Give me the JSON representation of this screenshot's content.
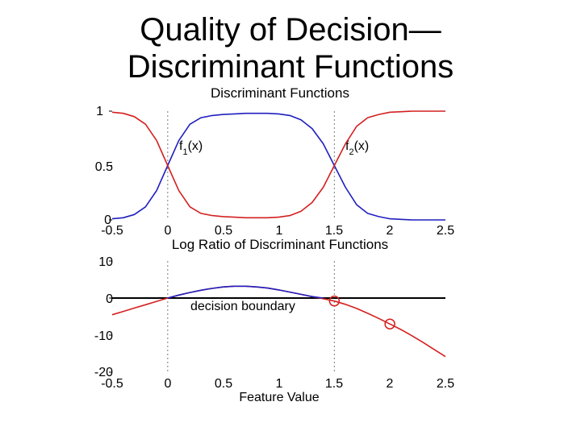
{
  "slide": {
    "title_line1": "Quality of Decision—",
    "title_line2": "Discriminant Functions"
  },
  "chart_data": [
    {
      "type": "line",
      "title": "Discriminant Functions",
      "xlabel": "",
      "ylabel": "",
      "xlim": [
        -0.5,
        2.5
      ],
      "ylim": [
        0,
        1
      ],
      "xticks": [
        "-0.5",
        "0",
        "0.5",
        "1",
        "1.5",
        "2",
        "2.5"
      ],
      "yticks": [
        "0",
        "0.5",
        "1"
      ],
      "vlines": [
        0,
        1.5
      ],
      "grid": false,
      "series": [
        {
          "name": "f1(x)",
          "color": "#1f1fbf",
          "x": [
            -0.5,
            -0.4,
            -0.3,
            -0.2,
            -0.1,
            0.0,
            0.1,
            0.2,
            0.3,
            0.4,
            0.5,
            0.6,
            0.7,
            0.8,
            0.9,
            1.0,
            1.1,
            1.2,
            1.3,
            1.4,
            1.5,
            1.6,
            1.7,
            1.8,
            1.9,
            2.0,
            2.1,
            2.2,
            2.3,
            2.4,
            2.5
          ],
          "y": [
            0.01,
            0.02,
            0.05,
            0.12,
            0.27,
            0.5,
            0.73,
            0.88,
            0.94,
            0.96,
            0.97,
            0.975,
            0.98,
            0.98,
            0.98,
            0.975,
            0.96,
            0.92,
            0.84,
            0.7,
            0.5,
            0.3,
            0.14,
            0.06,
            0.03,
            0.01,
            0.005,
            0.0,
            0.0,
            0.0,
            0.0
          ]
        },
        {
          "name": "f2(x)",
          "color": "#d42020",
          "x": [
            -0.5,
            -0.4,
            -0.3,
            -0.2,
            -0.1,
            0.0,
            0.1,
            0.2,
            0.3,
            0.4,
            0.5,
            0.6,
            0.7,
            0.8,
            0.9,
            1.0,
            1.1,
            1.2,
            1.3,
            1.4,
            1.5,
            1.6,
            1.7,
            1.8,
            1.9,
            2.0,
            2.1,
            2.2,
            2.3,
            2.4,
            2.5
          ],
          "y": [
            0.99,
            0.98,
            0.95,
            0.88,
            0.73,
            0.5,
            0.27,
            0.12,
            0.06,
            0.04,
            0.03,
            0.025,
            0.02,
            0.02,
            0.02,
            0.025,
            0.04,
            0.08,
            0.16,
            0.3,
            0.5,
            0.7,
            0.86,
            0.94,
            0.97,
            0.99,
            0.995,
            1.0,
            1.0,
            1.0,
            1.0
          ]
        }
      ],
      "annotations": [
        {
          "text": "f",
          "sub": "1",
          "rest": "(x)",
          "x": 0.1,
          "y": 0.68
        },
        {
          "text": "f",
          "sub": "2",
          "rest": "(x)",
          "x": 1.6,
          "y": 0.68
        }
      ]
    },
    {
      "type": "line",
      "title": "Log Ratio of Discriminant Functions",
      "xlabel": "Feature Value",
      "ylabel": "",
      "xlim": [
        -0.5,
        2.5
      ],
      "ylim": [
        -20,
        10
      ],
      "xticks": [
        "-0.5",
        "0",
        "0.5",
        "1",
        "1.5",
        "2",
        "2.5"
      ],
      "yticks": [
        "-20",
        "-10",
        "0",
        "10"
      ],
      "vlines": [
        0,
        1.5
      ],
      "grid": false,
      "series": [
        {
          "name": "",
          "color": "#d42020",
          "x": [
            -0.5,
            -0.4,
            -0.3,
            -0.2,
            -0.1,
            0.0,
            0.1,
            0.2,
            0.3,
            0.4,
            0.5,
            0.6,
            0.7,
            0.8,
            0.9,
            1.0,
            1.1,
            1.2,
            1.3,
            1.4,
            1.5,
            1.6,
            1.7,
            1.8,
            1.9,
            2.0,
            2.1,
            2.2,
            2.3,
            2.4,
            2.5
          ],
          "y": [
            -4.5,
            -3.6,
            -2.7,
            -1.8,
            -0.9,
            0.0,
            0.8,
            1.5,
            2.1,
            2.6,
            3.0,
            3.2,
            3.2,
            3.0,
            2.7,
            2.2,
            1.6,
            1.0,
            0.4,
            -0.2,
            -0.8,
            -1.7,
            -2.8,
            -4.1,
            -5.5,
            -7.0,
            -8.5,
            -10.2,
            -12.0,
            -13.9,
            -15.8
          ]
        },
        {
          "name": "",
          "color": "#1f1fbf",
          "x": [
            0.0,
            0.1,
            0.2,
            0.3,
            0.4,
            0.5,
            0.6,
            0.7,
            0.8,
            0.9,
            1.0,
            1.1,
            1.2,
            1.3,
            1.4
          ],
          "y": [
            0.0,
            0.8,
            1.5,
            2.1,
            2.6,
            3.0,
            3.2,
            3.2,
            3.0,
            2.7,
            2.2,
            1.6,
            1.0,
            0.4,
            0.0
          ]
        }
      ],
      "hline": 0,
      "markers": [
        {
          "x": 1.5,
          "y": -0.8
        },
        {
          "x": 2.0,
          "y": -7.0
        }
      ],
      "annotations": [
        {
          "text": "decision boundary",
          "x": 0.2,
          "y": -2.2
        }
      ]
    }
  ]
}
